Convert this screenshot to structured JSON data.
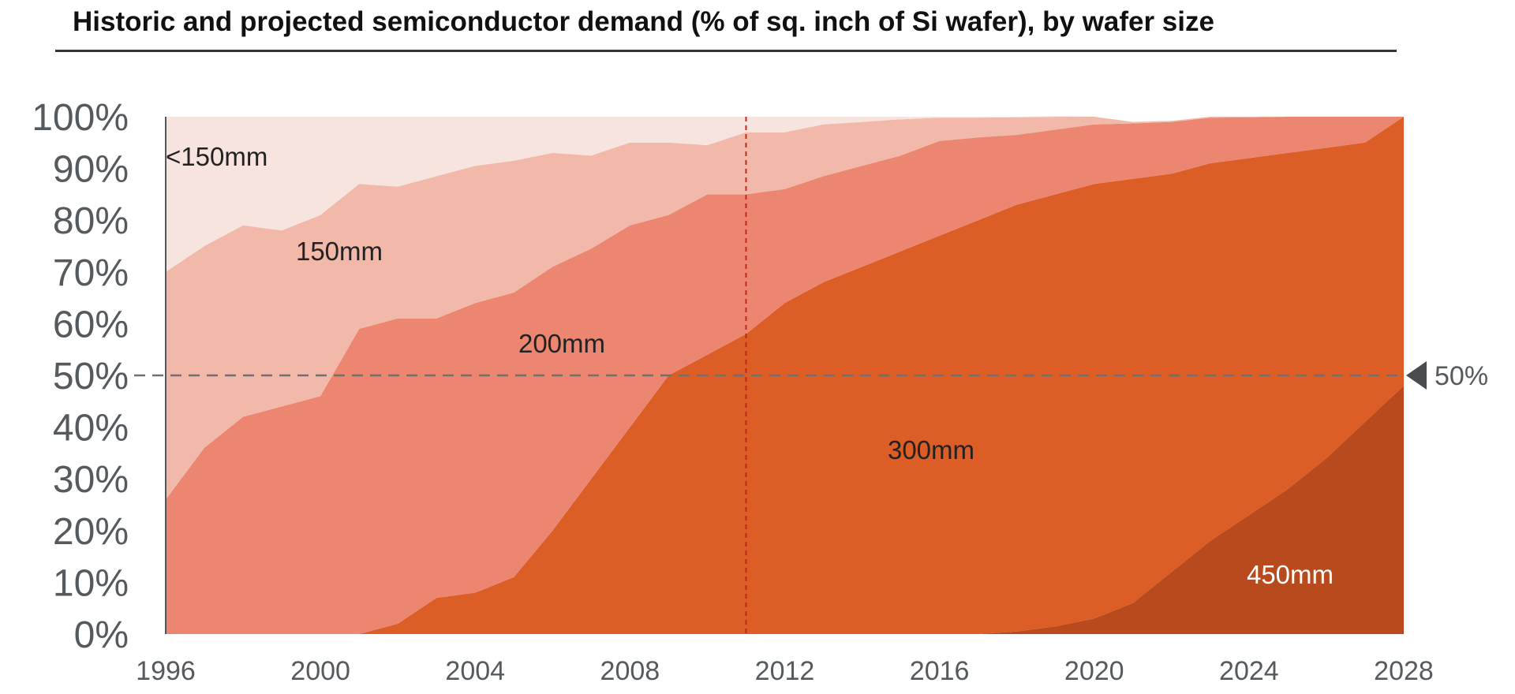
{
  "chart_data": {
    "type": "area",
    "stacked": true,
    "title": "Historic and projected semiconductor demand (% of sq. inch of Si wafer), by wafer size",
    "xlabel": "",
    "ylabel": "",
    "xlim": [
      1996,
      2028
    ],
    "ylim": [
      0,
      100
    ],
    "x_ticks": [
      "1996",
      "2000",
      "2004",
      "2008",
      "2012",
      "2016",
      "2020",
      "2024",
      "2028"
    ],
    "y_ticks": [
      "0%",
      "10%",
      "20%",
      "30%",
      "40%",
      "50%",
      "60%",
      "70%",
      "80%",
      "90%",
      "100%"
    ],
    "x": [
      1996,
      1997,
      1998,
      1999,
      2000,
      2001,
      2002,
      2003,
      2004,
      2005,
      2006,
      2007,
      2008,
      2009,
      2010,
      2011,
      2012,
      2013,
      2014,
      2015,
      2016,
      2017,
      2018,
      2019,
      2020,
      2021,
      2022,
      2023,
      2024,
      2025,
      2026,
      2027,
      2028
    ],
    "series": [
      {
        "name": "450mm",
        "color": "#b84a1e",
        "label_color": "#ffffff",
        "values": [
          0,
          0,
          0,
          0,
          0,
          0,
          0,
          0,
          0,
          0,
          0,
          0,
          0,
          0,
          0,
          0,
          0,
          0,
          0,
          0,
          0,
          0,
          0.5,
          1.5,
          3,
          6,
          12,
          18,
          23,
          28,
          34,
          41,
          48
        ]
      },
      {
        "name": "300mm",
        "color": "#dc5d25",
        "label_color": "#222222",
        "values": [
          0,
          0,
          0,
          0,
          0,
          0,
          2,
          7,
          8,
          11,
          20,
          30,
          40,
          50,
          54,
          58,
          64,
          68,
          71,
          74,
          77,
          80,
          82.5,
          83.5,
          84,
          82,
          77,
          73,
          69,
          65,
          60,
          54,
          52
        ]
      },
      {
        "name": "200mm",
        "color": "#ed8670",
        "label_color": "#222222",
        "values": [
          26,
          36,
          42,
          44,
          46,
          59,
          59,
          54,
          56,
          55,
          51,
          44.5,
          39,
          31,
          31,
          27,
          22,
          20.5,
          19.5,
          18.5,
          18.3,
          16,
          13.5,
          12.5,
          11.5,
          10.7,
          10,
          8.8,
          7.9,
          7,
          6,
          5,
          0
        ]
      },
      {
        "name": "150mm",
        "color": "#f2b9aa",
        "label_color": "#222222",
        "values": [
          44,
          39,
          37,
          34,
          35,
          28,
          25.5,
          27.5,
          26.5,
          25.5,
          22,
          18,
          16,
          14,
          9.5,
          12,
          11,
          10,
          8.5,
          7,
          4.5,
          3.8,
          3.4,
          2.5,
          1.5,
          0.3,
          0.2,
          0.2,
          0.1,
          0,
          0,
          0,
          0
        ]
      },
      {
        "name": "<150mm",
        "color": "#f8e4de",
        "label_color": "#222222",
        "values": [
          30,
          25,
          21,
          22,
          19,
          13,
          13.5,
          11.5,
          9.5,
          8.5,
          7,
          7.5,
          5,
          5,
          5.5,
          3,
          3,
          1.5,
          1,
          0.5,
          0.2,
          0.2,
          0.1,
          0.1,
          0,
          0,
          0,
          0,
          0,
          0,
          0,
          0,
          0
        ]
      }
    ],
    "series_labels": [
      "<150mm",
      "150mm",
      "200mm",
      "300mm",
      "450mm"
    ],
    "reference_lines": [
      {
        "axis": "y",
        "value": 50,
        "style": "dashed",
        "color": "#707070",
        "label": "50%"
      },
      {
        "axis": "x",
        "value": 2011,
        "style": "dotted",
        "color": "#c0281e",
        "label": ""
      }
    ]
  }
}
